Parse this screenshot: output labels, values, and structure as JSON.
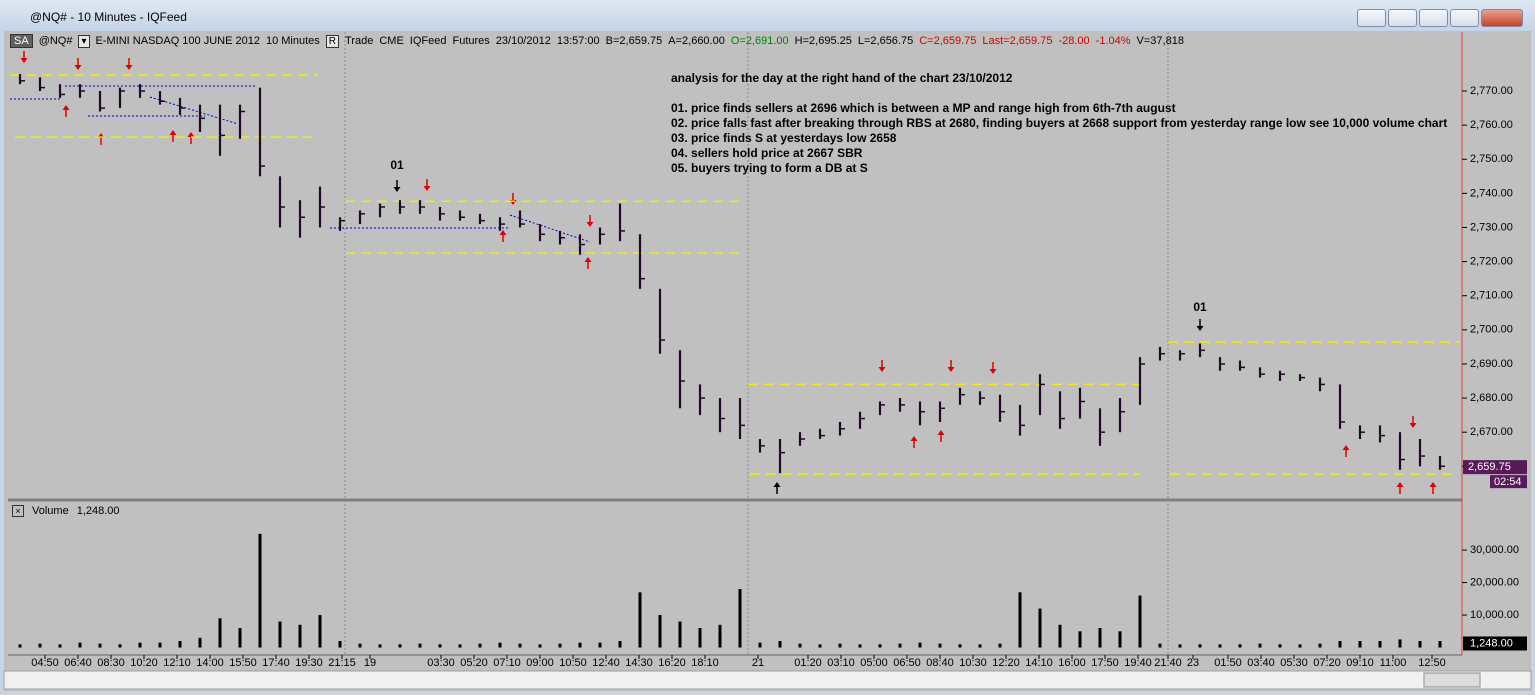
{
  "window_title": "@NQ# - 10 Minutes - IQFeed",
  "toolbar": {
    "badge": "SA",
    "symbol": "@NQ#",
    "mode": "R",
    "info": [
      {
        "text": "E-MINI NASDAQ 100 JUNE 2012",
        "color": "#000000"
      },
      {
        "text": "10 Minutes",
        "color": "#000000"
      },
      {
        "text": "Trade",
        "color": "#000000"
      },
      {
        "text": "CME",
        "color": "#000000"
      },
      {
        "text": "IQFeed",
        "color": "#000000"
      },
      {
        "text": "Futures",
        "color": "#000000"
      },
      {
        "text": "23/10/2012",
        "color": "#000000"
      },
      {
        "text": "13:57:00",
        "color": "#000000"
      },
      {
        "text": "B=2,659.75",
        "color": "#000000"
      },
      {
        "text": "A=2,660.00",
        "color": "#000000"
      },
      {
        "text": "O=2,691.00",
        "color": "#008000"
      },
      {
        "text": "H=2,695.25",
        "color": "#000000"
      },
      {
        "text": "L=2,656.75",
        "color": "#000000"
      },
      {
        "text": "C=2,659.75",
        "color": "#d00000"
      },
      {
        "text": "Last=2,659.75",
        "color": "#d00000"
      },
      {
        "text": "-28.00",
        "color": "#d00000"
      },
      {
        "text": "-1.04%",
        "color": "#d00000"
      },
      {
        "text": "V=37,818",
        "color": "#000000"
      }
    ]
  },
  "chart_data": [
    {
      "type": "ohlc",
      "color": "#1e0a22",
      "x": [
        0,
        1,
        2,
        3,
        4,
        5,
        6,
        7,
        8,
        9,
        10,
        11,
        12,
        13,
        14,
        15,
        16,
        17,
        18,
        19,
        20,
        21,
        22,
        23,
        24,
        25,
        26,
        27,
        28,
        29,
        30,
        31,
        32,
        33,
        34,
        35,
        36,
        37,
        38,
        39,
        40,
        41,
        42,
        43,
        44,
        45,
        46,
        47,
        48,
        49,
        50,
        51,
        52,
        53,
        54,
        55,
        56,
        57,
        58,
        59,
        60,
        61,
        62,
        63,
        64,
        65,
        66,
        67,
        68,
        69,
        70,
        71
      ],
      "high": [
        2775,
        2774,
        2772,
        2772,
        2770,
        2771,
        2772,
        2770,
        2768,
        2766,
        2766,
        2766,
        2771,
        2745,
        2738,
        2742,
        2733,
        2735,
        2737,
        2738,
        2738,
        2736,
        2735,
        2734,
        2733,
        2735,
        2731,
        2729,
        2728,
        2730,
        2737,
        2728,
        2712,
        2694,
        2684,
        2680,
        2680,
        2668,
        2668,
        2670,
        2671,
        2673,
        2676,
        2679,
        2680,
        2679,
        2679,
        2683,
        2682,
        2681,
        2678,
        2687,
        2682,
        2683,
        2677,
        2680,
        2692,
        2695,
        2694,
        2696,
        2692,
        2691,
        2689,
        2688,
        2687,
        2686,
        2684,
        2672,
        2672,
        2670,
        2668,
        2663
      ],
      "low": [
        2772,
        2770,
        2768,
        2768,
        2764,
        2765,
        2768,
        2766,
        2763,
        2758,
        2751,
        2756,
        2745,
        2730,
        2727,
        2730,
        2729,
        2731,
        2733,
        2734,
        2734,
        2732,
        2732,
        2731,
        2729,
        2730,
        2726,
        2725,
        2722,
        2725,
        2726,
        2712,
        2693,
        2677,
        2675,
        2670,
        2668,
        2664,
        2658,
        2666,
        2668,
        2669,
        2671,
        2675,
        2676,
        2672,
        2673,
        2678,
        2678,
        2673,
        2669,
        2675,
        2671,
        2674,
        2666,
        2670,
        2678,
        2691,
        2691,
        2692,
        2688,
        2688,
        2686,
        2685,
        2685,
        2682,
        2671,
        2668,
        2667,
        2659,
        2660,
        2659
      ],
      "close": [
        2773,
        2771,
        2769,
        2770,
        2765,
        2770,
        2770,
        2767,
        2765,
        2762,
        2757,
        2764,
        2748,
        2736,
        2733,
        2736,
        2732,
        2734,
        2736,
        2736,
        2736,
        2734,
        2733,
        2732,
        2731,
        2731,
        2728,
        2727,
        2725,
        2728,
        2729,
        2715,
        2697,
        2685,
        2680,
        2674,
        2672,
        2666,
        2664,
        2668,
        2669,
        2671,
        2674,
        2678,
        2678,
        2676,
        2677,
        2681,
        2680,
        2676,
        2672,
        2684,
        2674,
        2679,
        2670,
        2676,
        2690,
        2693,
        2693,
        2694,
        2690,
        2689,
        2687,
        2687,
        2686,
        2684,
        2673,
        2670,
        2669,
        2662,
        2663,
        2660
      ],
      "xlim": [
        -0.6,
        72
      ],
      "ylim": [
        2651,
        2787.3
      ],
      "yticks": [
        {
          "value": 2660,
          "label": "2,660.00"
        },
        {
          "value": 2670,
          "label": "2,670.00"
        },
        {
          "value": 2680,
          "label": "2,680.00"
        },
        {
          "value": 2690,
          "label": "2,690.00"
        },
        {
          "value": 2700,
          "label": "2,700.00"
        },
        {
          "value": 2710,
          "label": "2,710.00"
        },
        {
          "value": 2720,
          "label": "2,720.00"
        },
        {
          "value": 2730,
          "label": "2,730.00"
        },
        {
          "value": 2740,
          "label": "2,740.00"
        },
        {
          "value": 2750,
          "label": "2,750.00"
        },
        {
          "value": 2760,
          "label": "2,760.00"
        },
        {
          "value": 2770,
          "label": "2,770.00"
        }
      ],
      "xticks": [
        {
          "value": 1.25,
          "label": "04:50"
        },
        {
          "value": 2.9,
          "label": "06:40"
        },
        {
          "value": 4.55,
          "label": "08:30"
        },
        {
          "value": 6.2,
          "label": "10:20"
        },
        {
          "value": 7.85,
          "label": "12:10"
        },
        {
          "value": 9.5,
          "label": "14:00"
        },
        {
          "value": 11.15,
          "label": "15:50"
        },
        {
          "value": 12.8,
          "label": "17:40"
        },
        {
          "value": 14.45,
          "label": "19:30"
        },
        {
          "value": 16.1,
          "label": "21:15"
        },
        {
          "value": 17.5,
          "label": "19"
        },
        {
          "value": 21.05,
          "label": "03:30"
        },
        {
          "value": 22.7,
          "label": "05:20"
        },
        {
          "value": 24.35,
          "label": "07:10"
        },
        {
          "value": 26,
          "label": "09:00"
        },
        {
          "value": 27.65,
          "label": "10:50"
        },
        {
          "value": 29.3,
          "label": "12:40"
        },
        {
          "value": 30.95,
          "label": "14:30"
        },
        {
          "value": 32.6,
          "label": "16:20"
        },
        {
          "value": 34.25,
          "label": "18:10"
        },
        {
          "value": 36.9,
          "label": "21"
        },
        {
          "value": 39.4,
          "label": "01:20"
        },
        {
          "value": 41.05,
          "label": "03:10"
        },
        {
          "value": 42.7,
          "label": "05:00"
        },
        {
          "value": 44.35,
          "label": "06:50"
        },
        {
          "value": 46,
          "label": "08:40"
        },
        {
          "value": 47.65,
          "label": "10:30"
        },
        {
          "value": 49.3,
          "label": "12:20"
        },
        {
          "value": 50.95,
          "label": "14:10"
        },
        {
          "value": 52.6,
          "label": "16:00"
        },
        {
          "value": 54.25,
          "label": "17:50"
        },
        {
          "value": 55.9,
          "label": "19:40"
        },
        {
          "value": 57.4,
          "label": "21:40"
        },
        {
          "value": 58.65,
          "label": "23"
        },
        {
          "value": 60.4,
          "label": "01:50"
        },
        {
          "value": 62.05,
          "label": "03:40"
        },
        {
          "value": 63.7,
          "label": "05:30"
        },
        {
          "value": 65.35,
          "label": "07:20"
        },
        {
          "value": 67,
          "label": "09:10"
        },
        {
          "value": 68.65,
          "label": "11:00"
        },
        {
          "value": 70.6,
          "label": "12:50"
        }
      ],
      "grid": false,
      "levels": [
        {
          "value": 2774.7,
          "from": -0.5,
          "to": 14.9
        },
        {
          "value": 2756.5,
          "from": -0.25,
          "to": 14.6
        },
        {
          "value": 2737.7,
          "from": 16.25,
          "to": 36
        },
        {
          "value": 2722.5,
          "from": 16.25,
          "to": 36
        },
        {
          "value": 2684,
          "from": 36.4,
          "to": 56
        },
        {
          "value": 2657.7,
          "from": 36.5,
          "to": 56
        },
        {
          "value": 2696.4,
          "from": 57.4,
          "to": 72
        },
        {
          "value": 2657.7,
          "from": 57.5,
          "to": 71.75
        }
      ],
      "level_color": "#f0f000",
      "annotations": [
        {
          "text": "01",
          "x": 18.85,
          "y": 2748
        },
        {
          "text": "01",
          "x": 59,
          "y": 2706.4
        }
      ],
      "notes": [
        "analysis for the day at the right hand of the chart 23/10/2012",
        "01. price finds sellers at 2696 which is between a MP and range high from 6th-7th august",
        "02. price falls fast after breaking through RBS at 2680, finding buyers at 2668 support from yesterday range low see 10,000 volume chart",
        "03. price finds S at yesterdays low 2658",
        "04. sellers hold price at 2667 SBR",
        "05. buyers trying to form a DB at S"
      ],
      "last_price": {
        "value": 2659.75,
        "label": "2,659.75"
      },
      "countdown": "02:54"
    },
    {
      "type": "bar",
      "title": "Volume",
      "color": "#000000",
      "x": [
        0,
        1,
        2,
        3,
        4,
        5,
        6,
        7,
        8,
        9,
        10,
        11,
        12,
        13,
        14,
        15,
        16,
        17,
        18,
        19,
        20,
        21,
        22,
        23,
        24,
        25,
        26,
        27,
        28,
        29,
        30,
        31,
        32,
        33,
        34,
        35,
        36,
        37,
        38,
        39,
        40,
        41,
        42,
        43,
        44,
        45,
        46,
        47,
        48,
        49,
        50,
        51,
        52,
        53,
        54,
        55,
        56,
        57,
        58,
        59,
        60,
        61,
        62,
        63,
        64,
        65,
        66,
        67,
        68,
        69,
        70,
        71
      ],
      "values": [
        1000,
        1200,
        1000,
        1500,
        1200,
        1000,
        1500,
        1500,
        2000,
        3000,
        9000,
        6000,
        35000,
        8000,
        7000,
        10000,
        2000,
        1200,
        1000,
        1000,
        1200,
        1000,
        1000,
        1200,
        1500,
        1200,
        1000,
        1200,
        1500,
        1500,
        2000,
        17000,
        10000,
        8000,
        6000,
        7000,
        18000,
        1500,
        2000,
        1200,
        1000,
        1200,
        1000,
        1000,
        1200,
        1500,
        1200,
        1000,
        1000,
        1200,
        17000,
        12000,
        7000,
        5000,
        6000,
        5000,
        16000,
        1200,
        1000,
        1000,
        1000,
        1000,
        1200,
        1000,
        1000,
        1200,
        2000,
        2000,
        2000,
        2500,
        2000,
        2000
      ],
      "xlim": [
        -0.6,
        72
      ],
      "ylim": [
        -2300,
        44500
      ],
      "yticks": [
        {
          "value": 10000,
          "label": "10,000.00"
        },
        {
          "value": 20000,
          "label": "20,000.00"
        },
        {
          "value": 30000,
          "label": "30,000.00"
        }
      ],
      "last_value": {
        "value": 1248,
        "label": "1,248.00"
      }
    }
  ]
}
